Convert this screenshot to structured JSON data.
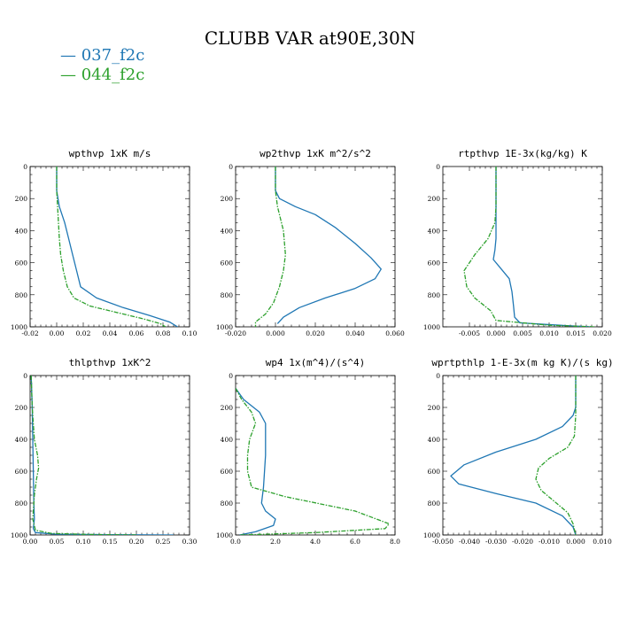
{
  "figure_title": "CLUBB VAR at90E,30N",
  "legend": [
    {
      "label": "— 037_f2c",
      "color": "#1f77b4"
    },
    {
      "label": "— 044_f2c",
      "color": "#2ca02c"
    }
  ],
  "chart_data": [
    {
      "type": "line",
      "title": "wpthvp   1xK m/s",
      "xlim": [
        -0.02,
        0.1
      ],
      "ylim": [
        1000,
        0
      ],
      "xticks": [
        -0.02,
        0.0,
        0.02,
        0.04,
        0.06,
        0.08,
        0.1
      ],
      "xtick_labels": [
        "-0.02",
        "0.00",
        "0.02",
        "0.04",
        "0.06",
        "0.08",
        "0.10"
      ],
      "yticks": [
        0,
        200,
        400,
        600,
        800,
        1000
      ],
      "ytick_labels": [
        "0",
        "200",
        "400",
        "600",
        "800",
        "1000"
      ],
      "series": [
        {
          "name": "037_f2c",
          "color": "#1f77b4",
          "dashed": false,
          "x": [
            0.0,
            0.0,
            0.002,
            0.006,
            0.009,
            0.012,
            0.015,
            0.018,
            0.03,
            0.05,
            0.07,
            0.085,
            0.091
          ],
          "y": [
            0,
            150,
            250,
            350,
            450,
            550,
            650,
            750,
            820,
            880,
            930,
            970,
            1000
          ]
        },
        {
          "name": "044_f2c",
          "color": "#2ca02c",
          "dashed": true,
          "x": [
            0.0,
            0.0,
            0.001,
            0.002,
            0.003,
            0.005,
            0.008,
            0.013,
            0.025,
            0.045,
            0.065,
            0.078,
            0.082
          ],
          "y": [
            0,
            150,
            300,
            450,
            550,
            650,
            750,
            820,
            870,
            910,
            950,
            980,
            1000
          ]
        }
      ]
    },
    {
      "type": "line",
      "title": "wp2thvp   1xK m^2/s^2",
      "xlim": [
        -0.02,
        0.06
      ],
      "ylim": [
        1000,
        0
      ],
      "xticks": [
        -0.02,
        0.0,
        0.02,
        0.04,
        0.06
      ],
      "xtick_labels": [
        "-0.020",
        "0.000",
        "0.020",
        "0.040",
        "0.060"
      ],
      "yticks": [
        0,
        200,
        400,
        600,
        800,
        1000
      ],
      "ytick_labels": [
        "0",
        "200",
        "400",
        "600",
        "800",
        "1000"
      ],
      "series": [
        {
          "name": "037_f2c",
          "color": "#1f77b4",
          "dashed": false,
          "x": [
            0.0,
            0.0,
            0.002,
            0.01,
            0.02,
            0.03,
            0.04,
            0.048,
            0.053,
            0.05,
            0.04,
            0.025,
            0.012,
            0.004,
            0.001
          ],
          "y": [
            0,
            150,
            200,
            250,
            300,
            380,
            480,
            570,
            640,
            700,
            760,
            820,
            880,
            940,
            980
          ]
        },
        {
          "name": "044_f2c",
          "color": "#2ca02c",
          "dashed": true,
          "x": [
            0.0,
            0.0,
            0.001,
            0.004,
            0.005,
            0.004,
            0.002,
            -0.001,
            -0.005,
            -0.01,
            -0.01
          ],
          "y": [
            0,
            150,
            250,
            400,
            550,
            650,
            750,
            850,
            920,
            970,
            1000
          ]
        }
      ]
    },
    {
      "type": "line",
      "title": "rtpthvp   1E-3x(kg/kg) K",
      "xlim": [
        -0.01,
        0.02
      ],
      "ylim": [
        1000,
        0
      ],
      "xticks": [
        -0.005,
        0.0,
        0.005,
        0.01,
        0.015,
        0.02
      ],
      "xtick_labels": [
        "-0.005",
        "0.000",
        "0.005",
        "0.010",
        "0.015",
        "0.020"
      ],
      "yticks": [
        0,
        200,
        400,
        600,
        800,
        1000
      ],
      "ytick_labels": [
        "0",
        "200",
        "400",
        "600",
        "800",
        "1000"
      ],
      "series": [
        {
          "name": "037_f2c",
          "color": "#1f77b4",
          "dashed": false,
          "x": [
            0.0,
            0.0,
            0.0,
            0.0,
            -0.0002,
            -0.0005,
            0.001,
            0.0025,
            0.003,
            0.0033,
            0.0035,
            0.0045,
            0.012,
            0.018
          ],
          "y": [
            0,
            200,
            350,
            450,
            520,
            580,
            640,
            700,
            780,
            870,
            940,
            975,
            990,
            1000
          ]
        },
        {
          "name": "044_f2c",
          "color": "#2ca02c",
          "dashed": true,
          "x": [
            0.0,
            0.0,
            -0.0002,
            -0.0015,
            -0.004,
            -0.006,
            -0.0055,
            -0.004,
            -0.001,
            0.0,
            0.01,
            0.0185
          ],
          "y": [
            0,
            250,
            350,
            450,
            550,
            650,
            750,
            820,
            900,
            960,
            990,
            1000
          ]
        }
      ]
    },
    {
      "type": "line",
      "title": "thlpthvp   1xK^2",
      "xlim": [
        0.0,
        0.3
      ],
      "ylim": [
        1000,
        0
      ],
      "xticks": [
        0.0,
        0.05,
        0.1,
        0.15,
        0.2,
        0.25,
        0.3
      ],
      "xtick_labels": [
        "0.00",
        "0.05",
        "0.10",
        "0.15",
        "0.20",
        "0.25",
        "0.30"
      ],
      "yticks": [
        0,
        200,
        400,
        600,
        800,
        1000
      ],
      "ytick_labels": [
        "0",
        "200",
        "400",
        "600",
        "800",
        "1000"
      ],
      "series": [
        {
          "name": "037_f2c",
          "color": "#1f77b4",
          "dashed": false,
          "x": [
            0.002,
            0.004,
            0.005,
            0.006,
            0.007,
            0.008,
            0.006,
            0.01,
            0.05,
            0.15,
            0.27
          ],
          "y": [
            0,
            200,
            400,
            600,
            800,
            900,
            960,
            985,
            995,
            998,
            1000
          ]
        },
        {
          "name": "044_f2c",
          "color": "#2ca02c",
          "dashed": true,
          "x": [
            0.002,
            0.004,
            0.008,
            0.014,
            0.016,
            0.012,
            0.008,
            0.005,
            0.01,
            0.04,
            0.12,
            0.2
          ],
          "y": [
            0,
            200,
            400,
            500,
            580,
            650,
            750,
            900,
            970,
            990,
            997,
            1000
          ]
        }
      ]
    },
    {
      "type": "line",
      "title": "wp4   1x(m^4)/(s^4)",
      "xlim": [
        0.0,
        8.0
      ],
      "ylim": [
        1000,
        0
      ],
      "xticks": [
        0.0,
        2.0,
        4.0,
        6.0,
        8.0
      ],
      "xtick_labels": [
        "0.0",
        "2.0",
        "4.0",
        "6.0",
        "8.0"
      ],
      "yticks": [
        0,
        200,
        400,
        600,
        800,
        1000
      ],
      "ytick_labels": [
        "0",
        "200",
        "400",
        "600",
        "800",
        "1000"
      ],
      "series": [
        {
          "name": "037_f2c",
          "color": "#1f77b4",
          "dashed": false,
          "x": [
            0.0,
            0.4,
            1.2,
            1.5,
            1.5,
            1.4,
            1.3,
            1.5,
            2.0,
            1.9,
            1.0,
            0.2
          ],
          "y": [
            80,
            150,
            230,
            300,
            500,
            700,
            800,
            850,
            900,
            940,
            980,
            1000
          ]
        },
        {
          "name": "044_f2c",
          "color": "#2ca02c",
          "dashed": true,
          "x": [
            0.0,
            0.3,
            0.8,
            1.0,
            0.7,
            0.6,
            0.6,
            0.8,
            2.5,
            6.0,
            7.7,
            7.5,
            4.0,
            1.0,
            0.2
          ],
          "y": [
            80,
            150,
            230,
            300,
            400,
            500,
            600,
            700,
            760,
            850,
            930,
            960,
            985,
            997,
            1000
          ]
        }
      ]
    },
    {
      "type": "line",
      "title": "wprtpthlp   1-E-3x(m kg K)/(s kg)",
      "xlim": [
        -0.05,
        0.01
      ],
      "ylim": [
        1000,
        0
      ],
      "xticks": [
        -0.05,
        -0.04,
        -0.03,
        -0.02,
        -0.01,
        0.0,
        0.01
      ],
      "xtick_labels": [
        "-0.050",
        "-0.040",
        "-0.030",
        "-0.020",
        "-0.010",
        "0.000",
        "0.010"
      ],
      "yticks": [
        0,
        200,
        400,
        600,
        800,
        1000
      ],
      "ytick_labels": [
        "0",
        "200",
        "400",
        "600",
        "800",
        "1000"
      ],
      "series": [
        {
          "name": "037_f2c",
          "color": "#1f77b4",
          "dashed": false,
          "x": [
            0.0,
            0.0,
            -0.001,
            -0.005,
            -0.015,
            -0.03,
            -0.042,
            -0.047,
            -0.044,
            -0.03,
            -0.015,
            -0.005,
            -0.001,
            0.0
          ],
          "y": [
            0,
            200,
            250,
            320,
            400,
            480,
            560,
            630,
            680,
            740,
            800,
            880,
            950,
            1000
          ]
        },
        {
          "name": "044_f2c",
          "color": "#2ca02c",
          "dashed": true,
          "x": [
            0.0,
            0.0,
            -0.0005,
            -0.003,
            -0.01,
            -0.014,
            -0.015,
            -0.013,
            -0.008,
            -0.003,
            -0.001,
            0.0
          ],
          "y": [
            0,
            250,
            380,
            450,
            520,
            580,
            650,
            720,
            790,
            860,
            930,
            1000
          ]
        }
      ]
    }
  ]
}
